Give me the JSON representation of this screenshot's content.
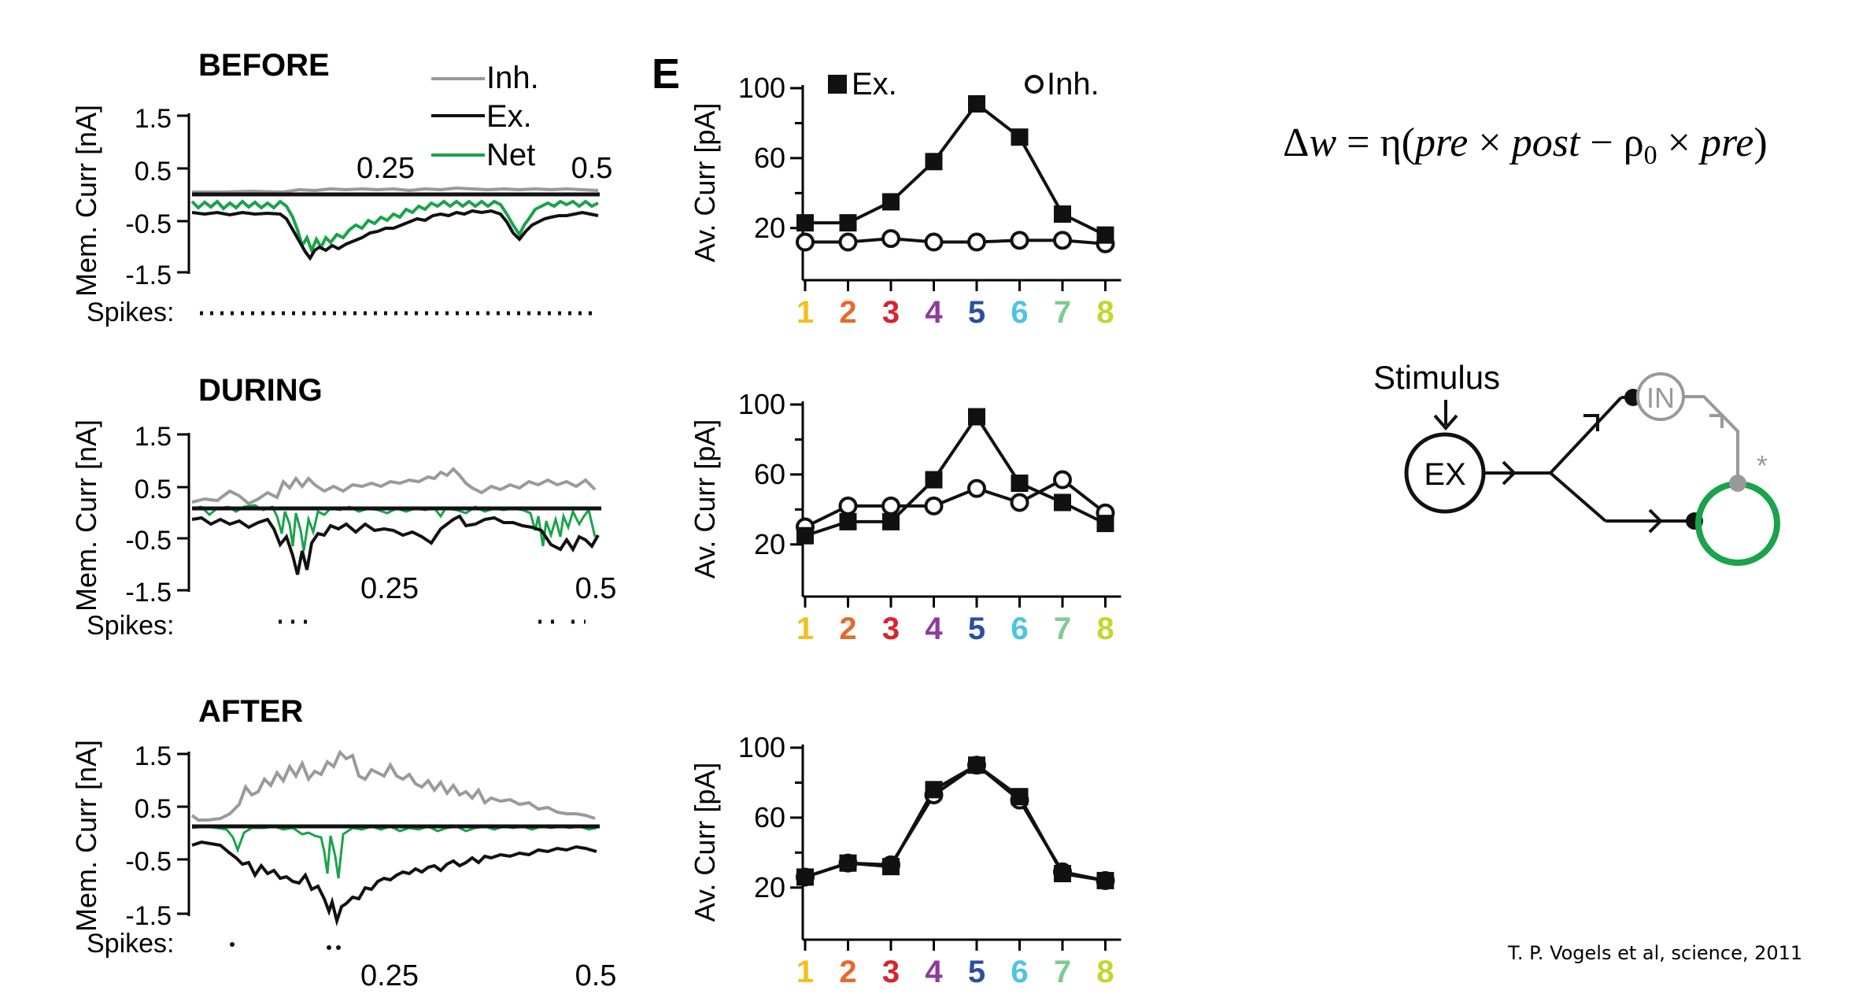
{
  "colors": {
    "inh": "#9a9a9a",
    "ex": "#111111",
    "net": "#1aa34a",
    "category_colors": [
      "#f2c01e",
      "#e8692a",
      "#d9232e",
      "#8b3d9a",
      "#2b4ea2",
      "#4cc3e4",
      "#7ecb8f",
      "#c3d62d"
    ]
  },
  "panel_letter": "E",
  "equation": "Δw = η(pre × post − ρ0 × pre)",
  "citation": "T. P. Vogels et al, science, 2011",
  "diagram": {
    "stimulus_label": "Stimulus",
    "ex_label": "EX",
    "in_label": "IN",
    "star": "*"
  },
  "trace_panels": [
    {
      "title": "BEFORE",
      "ylabel": "Mem. Curr [nA]",
      "yticks": [
        "1.5",
        "0.5",
        "-0.5",
        "-1.5"
      ],
      "xticks": [
        "0.25",
        "0.5"
      ],
      "spikes_label": "Spikes:",
      "legend": [
        "Inh.",
        "Ex.",
        "Net"
      ]
    },
    {
      "title": "DURING",
      "ylabel": "Mem. Curr [nA]",
      "yticks": [
        "1.5",
        "0.5",
        "-0.5",
        "-1.5"
      ],
      "xticks": [
        "0.25",
        "0.5"
      ],
      "spikes_label": "Spikes:"
    },
    {
      "title": "AFTER",
      "ylabel": "Mem. Curr [nA]",
      "yticks": [
        "1.5",
        "0.5",
        "-0.5",
        "-1.5"
      ],
      "xticks": [
        "0.25",
        "0.5"
      ],
      "spikes_label": "Spikes:"
    }
  ],
  "chart_data": [
    {
      "type": "line",
      "ylabel": "Av. Curr [pA]",
      "categories": [
        "1",
        "2",
        "3",
        "4",
        "5",
        "6",
        "7",
        "8"
      ],
      "yticks": [
        "100",
        "60",
        "20"
      ],
      "ylim": [
        10,
        100
      ],
      "series": [
        {
          "name": "Ex.",
          "marker": "filled-square",
          "values": [
            23,
            23,
            35,
            58,
            91,
            72,
            28,
            16
          ]
        },
        {
          "name": "Inh.",
          "marker": "open-circle",
          "values": [
            12,
            12,
            14,
            12,
            12,
            13,
            13,
            11
          ]
        }
      ],
      "legend": "top"
    },
    {
      "type": "line",
      "ylabel": "Av. Curr [pA]",
      "categories": [
        "1",
        "2",
        "3",
        "4",
        "5",
        "6",
        "7",
        "8"
      ],
      "yticks": [
        "100",
        "60",
        "20"
      ],
      "ylim": [
        10,
        100
      ],
      "series": [
        {
          "name": "Ex.",
          "marker": "filled-square",
          "values": [
            25,
            33,
            33,
            57,
            93,
            55,
            44,
            32
          ]
        },
        {
          "name": "Inh.",
          "marker": "open-circle",
          "values": [
            30,
            42,
            42,
            42,
            52,
            44,
            57,
            38
          ]
        }
      ]
    },
    {
      "type": "line",
      "ylabel": "Av. Curr [pA]",
      "categories": [
        "1",
        "2",
        "3",
        "4",
        "5",
        "6",
        "7",
        "8"
      ],
      "yticks": [
        "100",
        "60",
        "20"
      ],
      "ylim": [
        10,
        100
      ],
      "series": [
        {
          "name": "Ex.",
          "marker": "filled-square",
          "values": [
            26,
            34,
            32,
            76,
            90,
            72,
            28,
            24
          ]
        },
        {
          "name": "Inh.",
          "marker": "open-circle",
          "values": [
            26,
            34,
            33,
            73,
            90,
            70,
            29,
            24
          ]
        }
      ]
    }
  ]
}
